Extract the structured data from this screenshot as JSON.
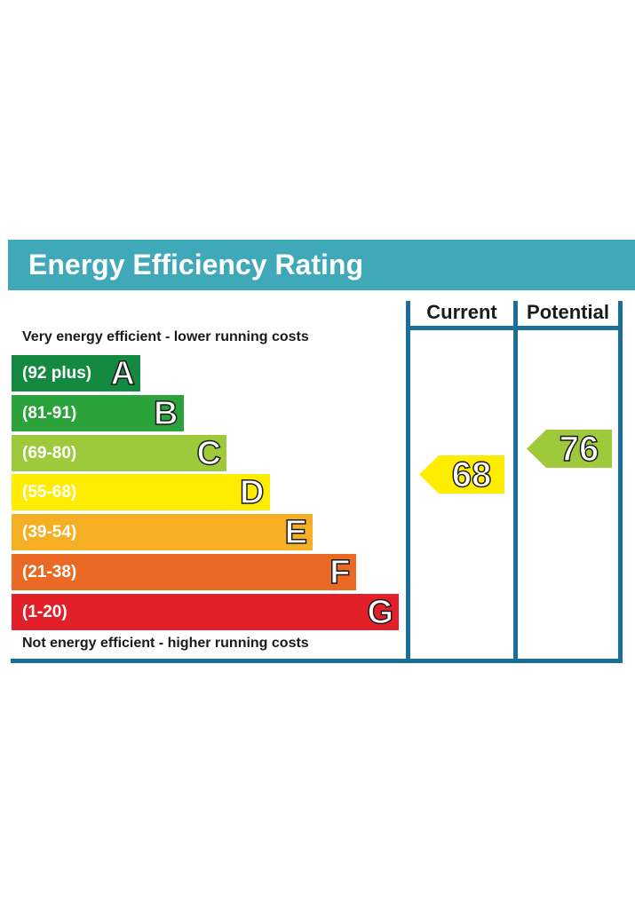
{
  "title": "Energy Efficiency Rating",
  "columns": {
    "current": "Current",
    "potential": "Potential"
  },
  "top_caption": "Very energy efficient - lower running costs",
  "bottom_caption": "Not energy efficient - higher running costs",
  "chart_data": {
    "type": "bar",
    "title": "Energy Efficiency Rating",
    "bands": [
      {
        "letter": "A",
        "range": "(92 plus)",
        "color": "#138a3f"
      },
      {
        "letter": "B",
        "range": "(81-91)",
        "color": "#2aa33a"
      },
      {
        "letter": "C",
        "range": "(69-80)",
        "color": "#9dc93b"
      },
      {
        "letter": "D",
        "range": "(55-68)",
        "color": "#ffed00"
      },
      {
        "letter": "E",
        "range": "(39-54)",
        "color": "#f6ae22"
      },
      {
        "letter": "F",
        "range": "(21-38)",
        "color": "#ea6a25"
      },
      {
        "letter": "G",
        "range": "(1-20)",
        "color": "#e2202a"
      }
    ],
    "current": {
      "value": "68",
      "band": "D",
      "color": "#ffed00"
    },
    "potential": {
      "value": "76",
      "band": "C",
      "color": "#9dc93b"
    }
  },
  "colors": {
    "header": "#3fa8b9",
    "frame": "#1b6e96"
  }
}
